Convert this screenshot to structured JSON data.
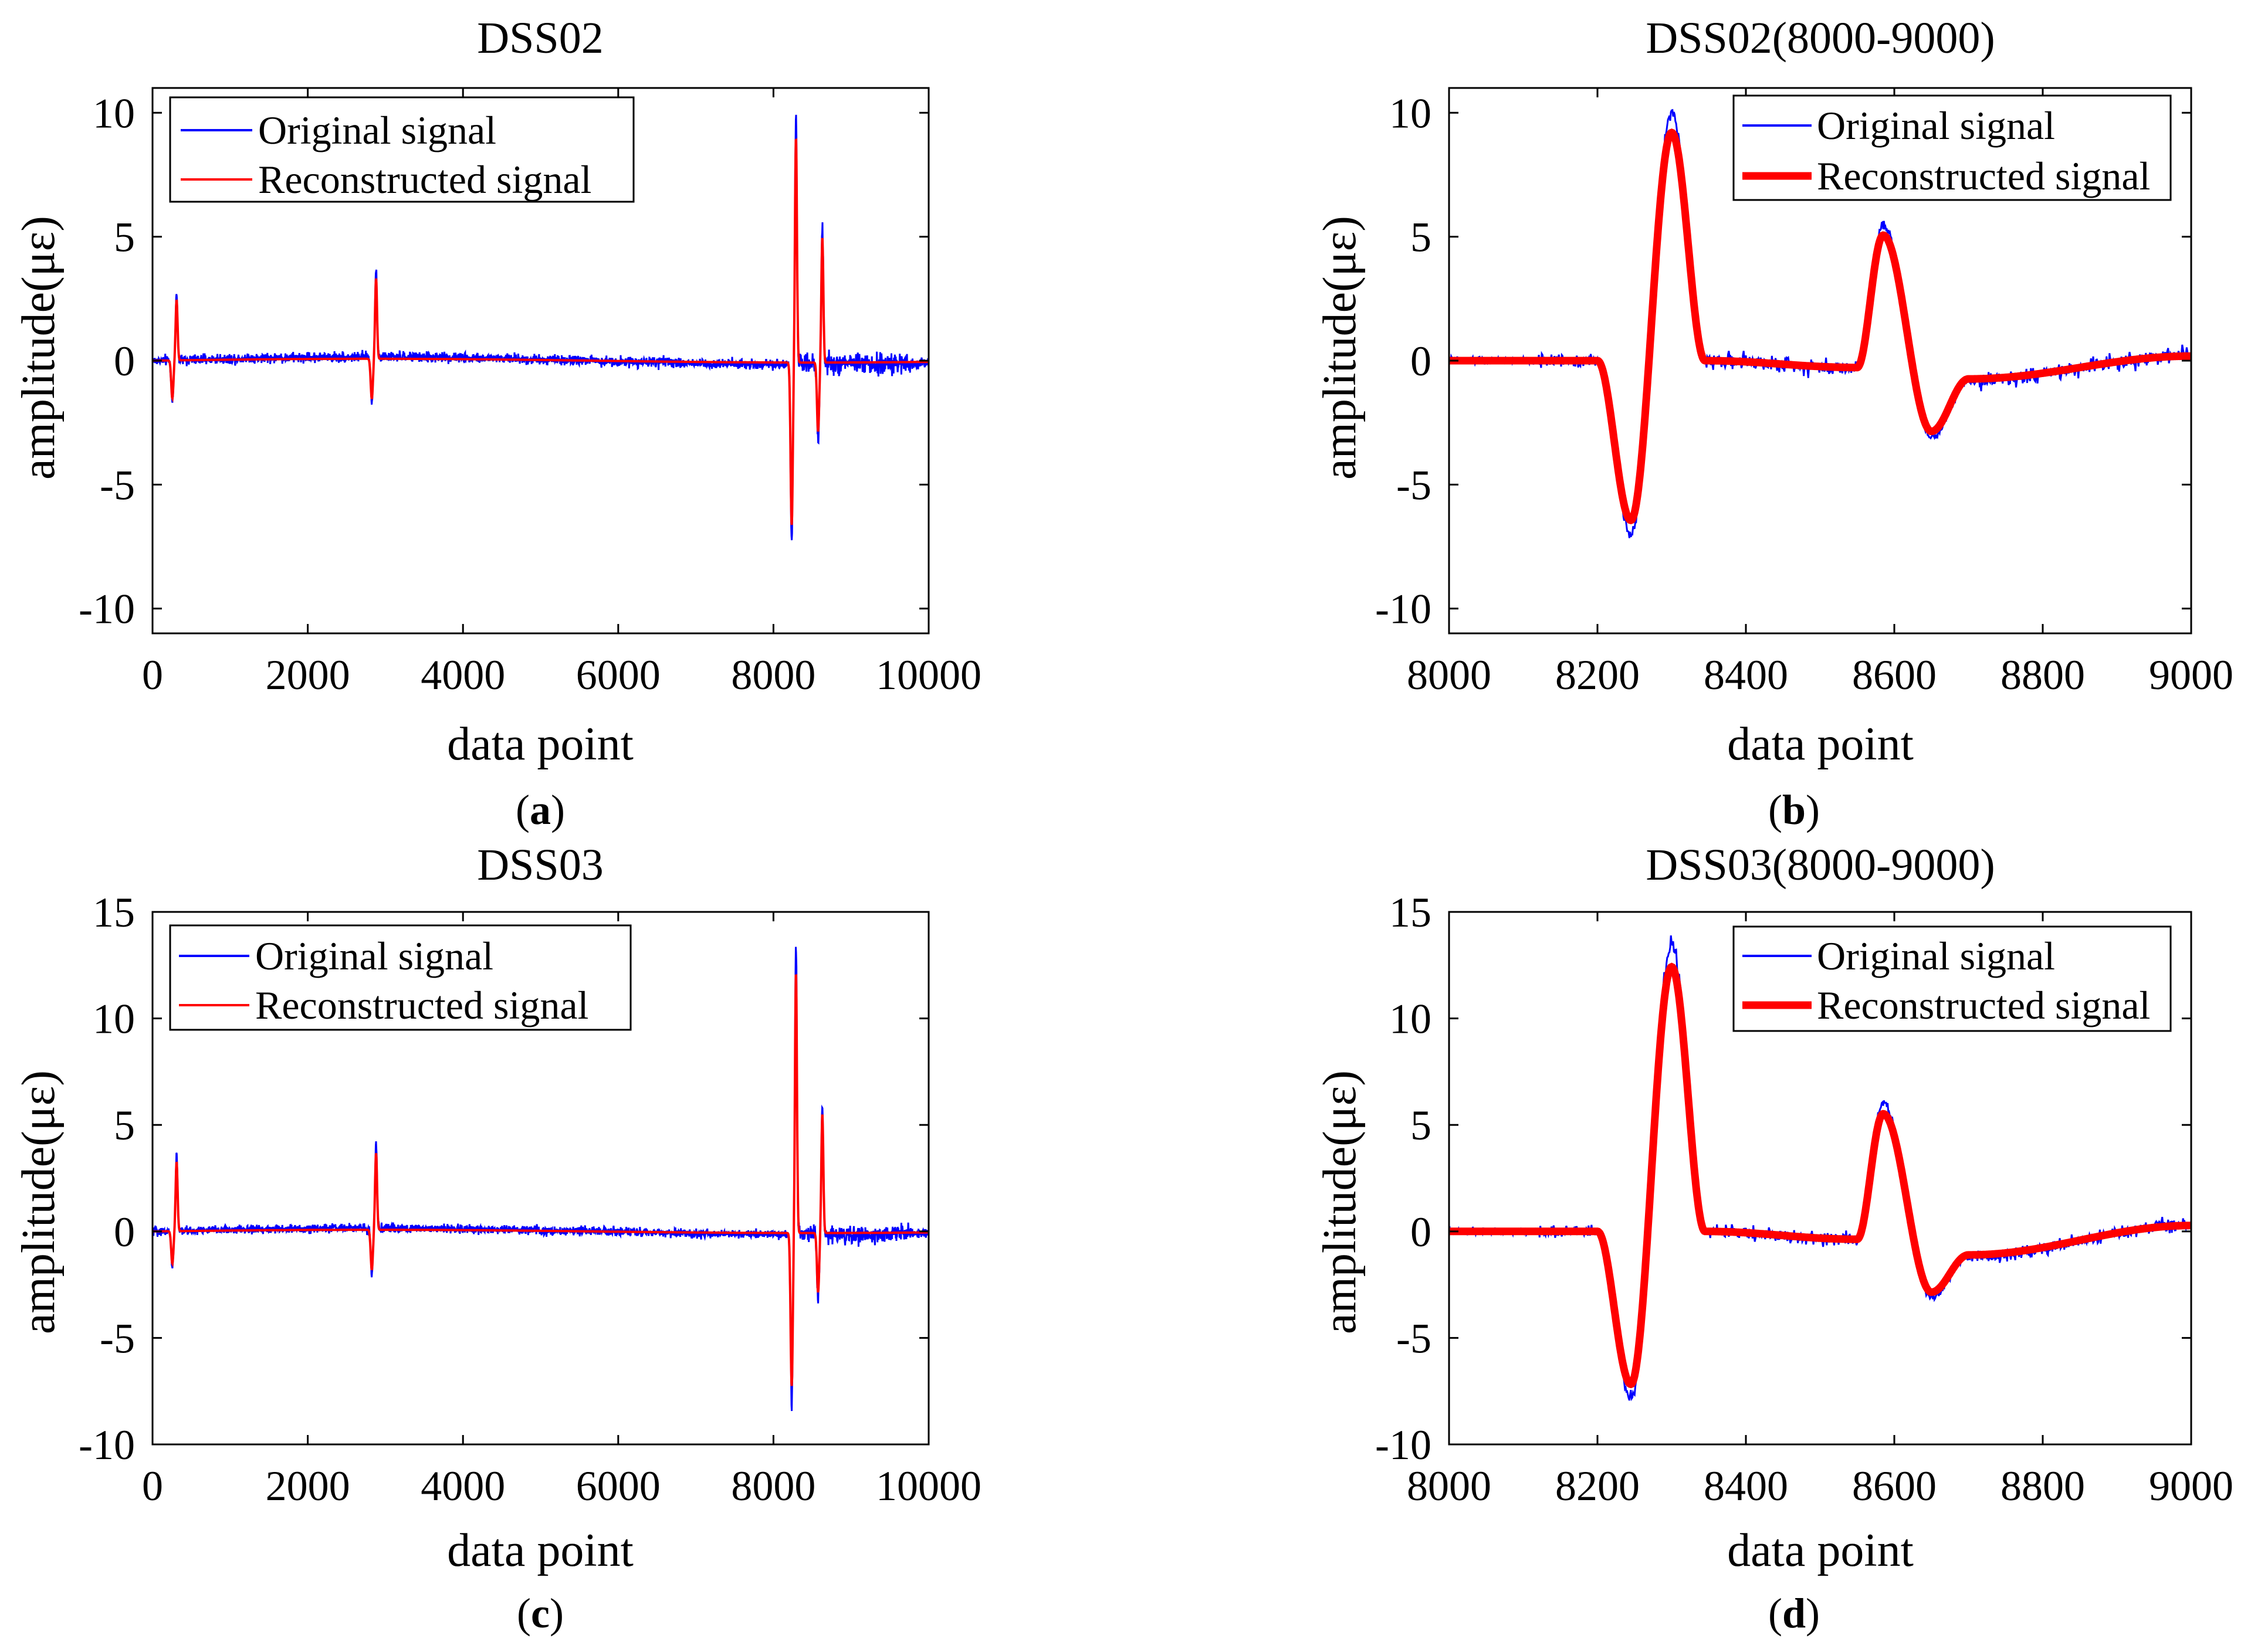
{
  "figure": {
    "captions": [
      "a",
      "b",
      "c",
      "d"
    ]
  },
  "legend": {
    "original": "Original signal",
    "reconstructed": "Reconstructed signal"
  },
  "colors": {
    "original": "#0000ff",
    "reconstructed": "#ff0000",
    "axis": "#000000"
  },
  "chart_data": [
    {
      "id": "a",
      "type": "line",
      "title": "DSS02",
      "xlabel": "data point",
      "ylabel": "amplitude(με)",
      "xlim": [
        0,
        10000
      ],
      "ylim": [
        -11,
        11
      ],
      "xticks": [
        0,
        2000,
        4000,
        6000,
        8000,
        10000
      ],
      "yticks": [
        -10,
        -5,
        0,
        5,
        10
      ],
      "legend_position": "top-left",
      "series": [
        {
          "name": "Original signal",
          "color": "#0000ff"
        },
        {
          "name": "Reconstructed signal",
          "color": "#ff0000"
        }
      ],
      "events": [
        {
          "x": 300,
          "pos": 2.7,
          "neg": -1.7
        },
        {
          "x": 2870,
          "pos": 3.6,
          "neg": -1.8
        },
        {
          "x": 8280,
          "pos": 10.1,
          "neg": -7.3
        },
        {
          "x": 8620,
          "pos": 5.6,
          "neg": -3.1
        }
      ]
    },
    {
      "id": "b",
      "type": "line",
      "title": "DSS02(8000-9000)",
      "xlabel": "data point",
      "ylabel": "amplitude(με)",
      "xlim": [
        8000,
        9000
      ],
      "ylim": [
        -11,
        11
      ],
      "xticks": [
        8000,
        8200,
        8400,
        8600,
        8800,
        9000
      ],
      "yticks": [
        -10,
        -5,
        0,
        5,
        10
      ],
      "legend_position": "top-right",
      "series": [
        {
          "name": "Original signal",
          "color": "#0000ff"
        },
        {
          "name": "Reconstructed signal",
          "color": "#ff0000"
        }
      ],
      "key_points": [
        [
          8000,
          0
        ],
        [
          8200,
          0
        ],
        [
          8245,
          -7.0
        ],
        [
          8300,
          10.0
        ],
        [
          8345,
          0
        ],
        [
          8550,
          -0.3
        ],
        [
          8585,
          5.5
        ],
        [
          8650,
          -3.1
        ],
        [
          8700,
          -0.8
        ],
        [
          9000,
          0.2
        ]
      ]
    },
    {
      "id": "c",
      "type": "line",
      "title": "DSS03",
      "xlabel": "data point",
      "ylabel": "amplitude(με)",
      "xlim": [
        0,
        10000
      ],
      "ylim": [
        -10,
        15
      ],
      "xticks": [
        0,
        2000,
        4000,
        6000,
        8000,
        10000
      ],
      "yticks": [
        -10,
        -5,
        0,
        5,
        10,
        15
      ],
      "legend_position": "top-left",
      "series": [
        {
          "name": "Original signal",
          "color": "#0000ff"
        },
        {
          "name": "Reconstructed signal",
          "color": "#ff0000"
        }
      ],
      "events": [
        {
          "x": 300,
          "pos": 3.6,
          "neg": -1.7
        },
        {
          "x": 2870,
          "pos": 4.0,
          "neg": -2.1
        },
        {
          "x": 8280,
          "pos": 13.6,
          "neg": -8.0
        },
        {
          "x": 8620,
          "pos": 6.2,
          "neg": -3.1
        }
      ]
    },
    {
      "id": "d",
      "type": "line",
      "title": "DSS03(8000-9000)",
      "xlabel": "data point",
      "ylabel": "amplitude(με)",
      "xlim": [
        8000,
        9000
      ],
      "ylim": [
        -10,
        15
      ],
      "xticks": [
        8000,
        8200,
        8400,
        8600,
        8800,
        9000
      ],
      "yticks": [
        -10,
        -5,
        0,
        5,
        10,
        15
      ],
      "legend_position": "top-right",
      "series": [
        {
          "name": "Original signal",
          "color": "#0000ff"
        },
        {
          "name": "Reconstructed signal",
          "color": "#ff0000"
        }
      ],
      "key_points": [
        [
          8000,
          0
        ],
        [
          8200,
          0
        ],
        [
          8245,
          -7.8
        ],
        [
          8300,
          13.5
        ],
        [
          8345,
          0
        ],
        [
          8550,
          -0.4
        ],
        [
          8585,
          6.0
        ],
        [
          8650,
          -3.1
        ],
        [
          8700,
          -1.2
        ],
        [
          9000,
          0.3
        ]
      ]
    }
  ]
}
